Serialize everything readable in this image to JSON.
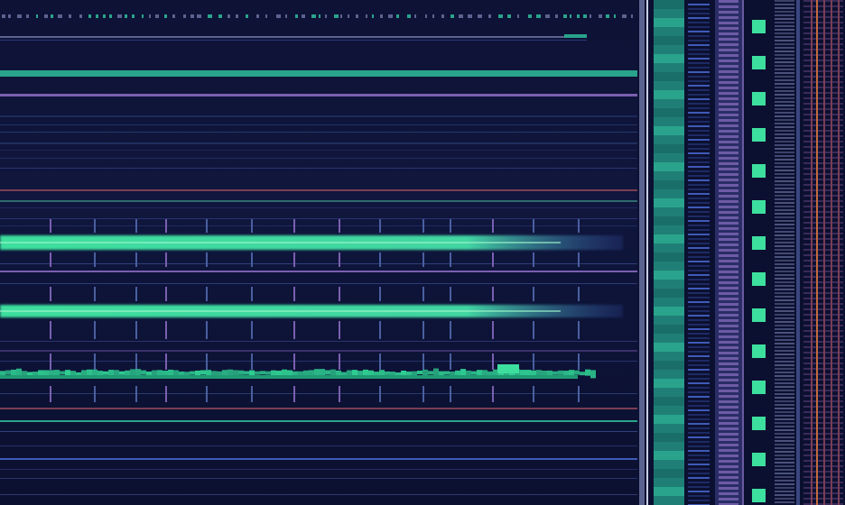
{
  "colors": {
    "background": "#0d1133",
    "panel_dark": "#0b0f2e",
    "accent_green": "#3ddf9e",
    "accent_teal": "#2aa38c",
    "accent_purple": "#7a5fb0",
    "accent_blue": "#3f5bb8",
    "accent_rust": "#c4693f",
    "stripe_gray": "#5a6390"
  },
  "bands": [
    {
      "name": "bright-band-1",
      "color": "#3ddf9e",
      "intensity": 0.95
    },
    {
      "name": "bright-band-2",
      "color": "#3ddf9e",
      "intensity": 0.9
    },
    {
      "name": "noisy-band-3",
      "color": "#2fcf93",
      "intensity": 0.8
    }
  ],
  "right_columns": [
    {
      "name": "teal-column",
      "color": "#2aa38c"
    },
    {
      "name": "stripe-column",
      "color": "#3f5bb8"
    },
    {
      "name": "purple-column",
      "color": "#8a6fc0"
    },
    {
      "name": "square-column",
      "color": "#3ddf9e"
    },
    {
      "name": "gray-column",
      "color": "#5a6390"
    },
    {
      "name": "rust-column",
      "color": "#c4693f"
    }
  ]
}
